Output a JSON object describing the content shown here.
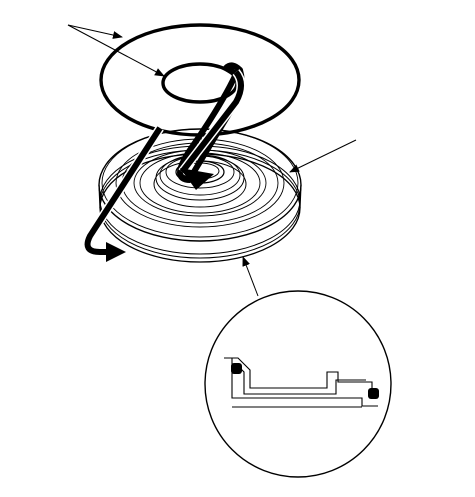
{
  "diagram": {
    "parts": [
      {
        "name": "o-ring"
      },
      {
        "name": "piston"
      },
      {
        "name": "piston-cross-section"
      }
    ],
    "callouts": [
      {
        "target": "o-ring",
        "text": ""
      },
      {
        "target": "piston",
        "text": ""
      },
      {
        "target": "piston-cross-section",
        "text": ""
      }
    ],
    "colors": {
      "line": "#000000",
      "background": "#ffffff"
    }
  }
}
